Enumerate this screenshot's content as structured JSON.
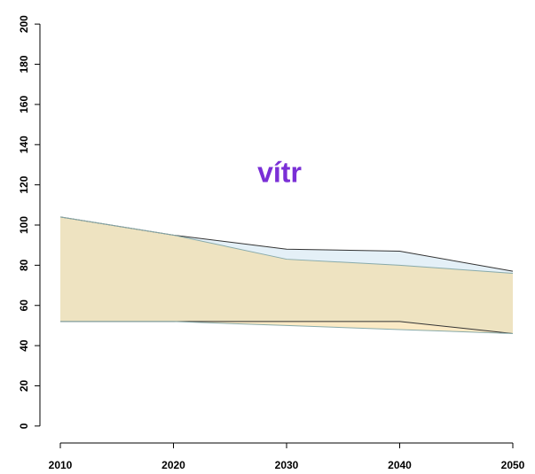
{
  "chart_data": {
    "type": "range_area",
    "title": "vítr",
    "title_color": "#7a2fd6",
    "x": [
      2010,
      2020,
      2030,
      2040,
      2050
    ],
    "series": [
      {
        "color": "#c9e2f0",
        "upper": [
          104,
          95,
          88,
          87,
          77
        ],
        "lower": [
          52,
          52,
          52,
          52,
          46
        ]
      },
      {
        "color": "#f7d58c",
        "upper": [
          104,
          95,
          83,
          80,
          76
        ],
        "lower": [
          52,
          52,
          50,
          48,
          46
        ]
      }
    ],
    "xlim": [
      2008.4,
      2051.6
    ],
    "xticks": [
      2010,
      2020,
      2030,
      2040,
      2050
    ],
    "ylim": [
      -8,
      208
    ],
    "yticks": [
      0,
      20,
      40,
      60,
      80,
      100,
      120,
      140,
      160,
      180,
      200
    ]
  }
}
